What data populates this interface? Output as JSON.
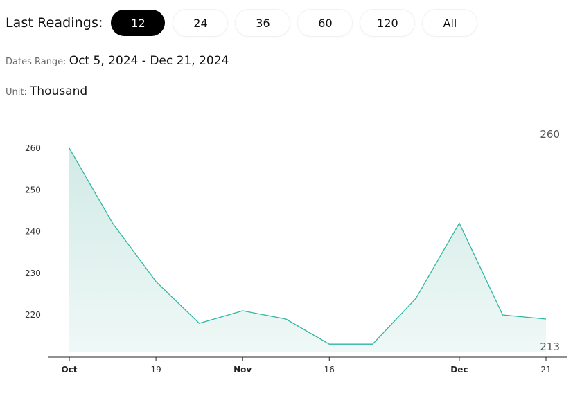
{
  "toolbar": {
    "label": "Last Readings:",
    "options": [
      "12",
      "24",
      "36",
      "60",
      "120",
      "All"
    ],
    "selected": "12"
  },
  "dates_range": {
    "label": "Dates Range:",
    "value": "Oct 5, 2024 - Dec 21, 2024"
  },
  "unit": {
    "label": "Unit:",
    "value": "Thousand"
  },
  "colors": {
    "line": "#2fb6a3",
    "fill": "#d9efeb",
    "active_pill": "#000000"
  },
  "chart_data": {
    "type": "area",
    "x": [
      "2024-10-05",
      "2024-10-12",
      "2024-10-19",
      "2024-10-26",
      "2024-11-02",
      "2024-11-09",
      "2024-11-16",
      "2024-11-23",
      "2024-11-30",
      "2024-12-07",
      "2024-12-14",
      "2024-12-21"
    ],
    "values": [
      260,
      242,
      228,
      218,
      221,
      219,
      213,
      213,
      224,
      242,
      220,
      219
    ],
    "ylim": [
      210,
      262
    ],
    "yticks": [
      220,
      230,
      240,
      250,
      260
    ],
    "xticks": [
      {
        "label": "Oct",
        "x": "2024-10-05",
        "bold": true
      },
      {
        "label": "19",
        "x": "2024-10-19",
        "bold": false
      },
      {
        "label": "Nov",
        "x": "2024-11-02",
        "bold": true
      },
      {
        "label": "16",
        "x": "2024-11-16",
        "bold": false
      },
      {
        "label": "Dec",
        "x": "2024-12-07",
        "bold": true
      },
      {
        "label": "21",
        "x": "2024-12-21",
        "bold": false
      }
    ],
    "max_label": "260",
    "min_label": "213",
    "grid": false,
    "title": "",
    "xlabel": "",
    "ylabel": ""
  }
}
